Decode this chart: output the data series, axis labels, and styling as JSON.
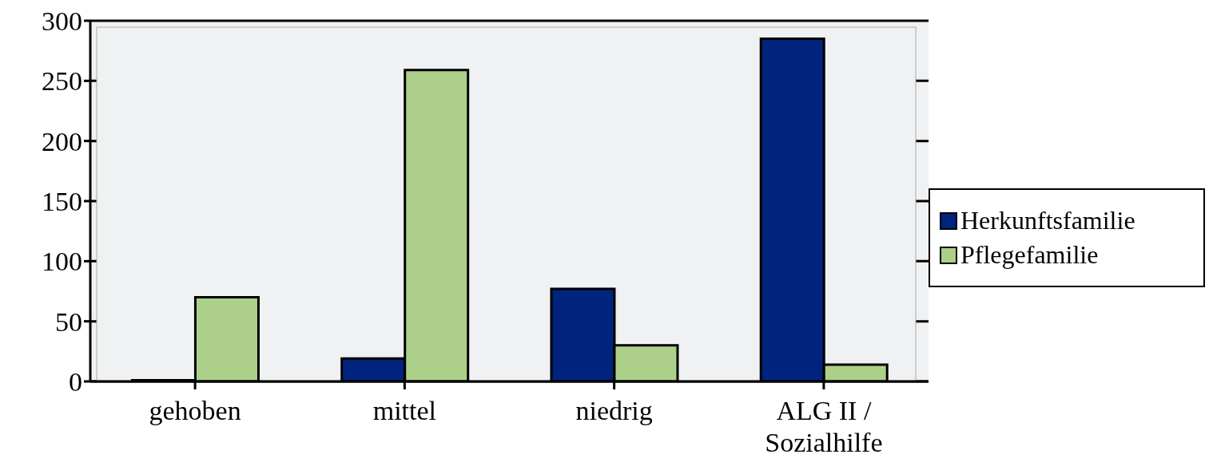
{
  "chart_data": {
    "type": "bar",
    "categories": [
      "gehoben",
      "mittel",
      "niedrig",
      "ALG II / Sozialhilfe"
    ],
    "series": [
      {
        "name": "Herkunftsfamilie",
        "color": "#00237d",
        "values": [
          1,
          19,
          77,
          285
        ]
      },
      {
        "name": "Pflegefamilie",
        "color": "#acd089",
        "values": [
          70,
          259,
          30,
          14
        ]
      }
    ],
    "ylim": [
      0,
      300
    ],
    "yticks": [
      0,
      50,
      100,
      150,
      200,
      250,
      300
    ],
    "grid": "y",
    "legend": "right"
  }
}
